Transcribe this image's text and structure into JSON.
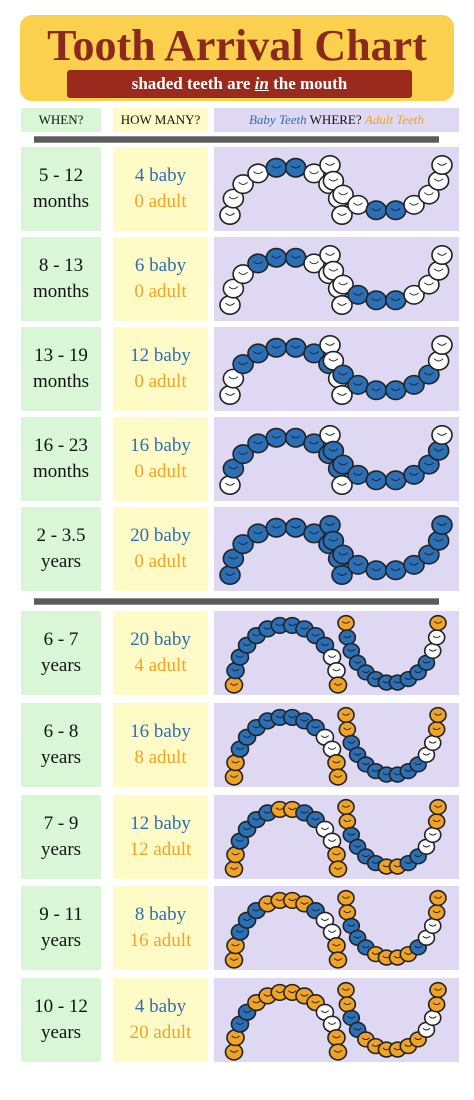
{
  "header": {
    "title": "Tooth Arrival Chart",
    "subtitle_pre": "shaded teeth are ",
    "subtitle_em": "in",
    "subtitle_post": " the mouth"
  },
  "columns": {
    "when": "WHEN?",
    "how_many": "HOW MANY?",
    "where_baby": "Baby Teeth",
    "where_mid": " WHERE? ",
    "where_adult": "Adult Teeth"
  },
  "colors": {
    "baby": "#2b6fb6",
    "adult": "#f0a324",
    "unshaded": "#ffffff"
  },
  "rows": [
    {
      "when1": "5 - 12",
      "when2": "months",
      "baby": "4 baby",
      "adult": "0 adult",
      "baby_count": 4,
      "adult_count": 0,
      "dentition": "baby"
    },
    {
      "when1": "8 - 13",
      "when2": "months",
      "baby": "6 baby",
      "adult": "0 adult",
      "baby_count": 6,
      "adult_count": 0,
      "dentition": "baby"
    },
    {
      "when1": "13 - 19",
      "when2": "months",
      "baby": "12 baby",
      "adult": "0 adult",
      "baby_count": 12,
      "adult_count": 0,
      "dentition": "baby"
    },
    {
      "when1": "16 - 23",
      "when2": "months",
      "baby": "16 baby",
      "adult": "0 adult",
      "baby_count": 16,
      "adult_count": 0,
      "dentition": "baby"
    },
    {
      "when1": "2 - 3.5",
      "when2": "years",
      "baby": "20 baby",
      "adult": "0 adult",
      "baby_count": 20,
      "adult_count": 0,
      "dentition": "baby"
    },
    {
      "when1": "6 - 7",
      "when2": "years",
      "baby": "20 baby",
      "adult": "4 adult",
      "baby_count": 20,
      "adult_count": 4,
      "dentition": "mixed"
    },
    {
      "when1": "6 - 8",
      "when2": "years",
      "baby": "16 baby",
      "adult": "8 adult",
      "baby_count": 16,
      "adult_count": 8,
      "dentition": "mixed"
    },
    {
      "when1": "7 - 9",
      "when2": "years",
      "baby": "12 baby",
      "adult": "12 adult",
      "baby_count": 12,
      "adult_count": 12,
      "dentition": "mixed"
    },
    {
      "when1": "9 - 11",
      "when2": "years",
      "baby": "8 baby",
      "adult": "16 adult",
      "baby_count": 8,
      "adult_count": 16,
      "dentition": "mixed"
    },
    {
      "when1": "10 - 12",
      "when2": "years",
      "baby": "4 baby",
      "adult": "20 adult",
      "baby_count": 4,
      "adult_count": 20,
      "dentition": "mixed"
    }
  ]
}
